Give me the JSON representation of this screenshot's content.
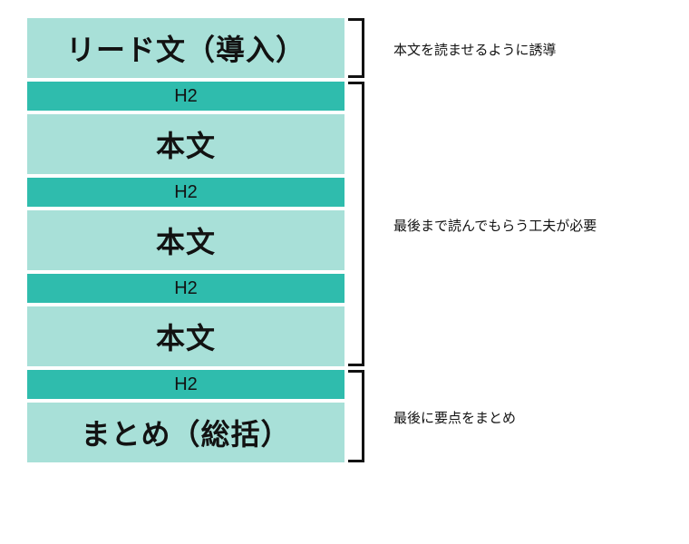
{
  "colors": {
    "light": "#a8e0d8",
    "dark": "#2fbcad",
    "text": "#121212",
    "bracket": "#121212",
    "anno": "#121212"
  },
  "layout": {
    "big_h": 66,
    "small_h": 32,
    "gap": 4,
    "bracket_w": 18
  },
  "rows": [
    {
      "type": "big",
      "color": "light",
      "label": "リード文（導入）"
    },
    {
      "type": "small",
      "color": "dark",
      "label": "H2"
    },
    {
      "type": "big",
      "color": "light",
      "label": "本文"
    },
    {
      "type": "small",
      "color": "dark",
      "label": "H2"
    },
    {
      "type": "big",
      "color": "light",
      "label": "本文"
    },
    {
      "type": "small",
      "color": "dark",
      "label": "H2"
    },
    {
      "type": "big",
      "color": "light",
      "label": "本文"
    },
    {
      "type": "small",
      "color": "dark",
      "label": "H2"
    },
    {
      "type": "big",
      "color": "light",
      "label": "まとめ（総括）"
    }
  ],
  "brackets": [
    {
      "from": 0,
      "to": 0,
      "label": "本文を読ませるように誘導"
    },
    {
      "from": 1,
      "to": 6,
      "label": "最後まで読んでもらう工夫が必要"
    },
    {
      "from": 7,
      "to": 8,
      "label": "最後に要点をまとめ"
    }
  ]
}
